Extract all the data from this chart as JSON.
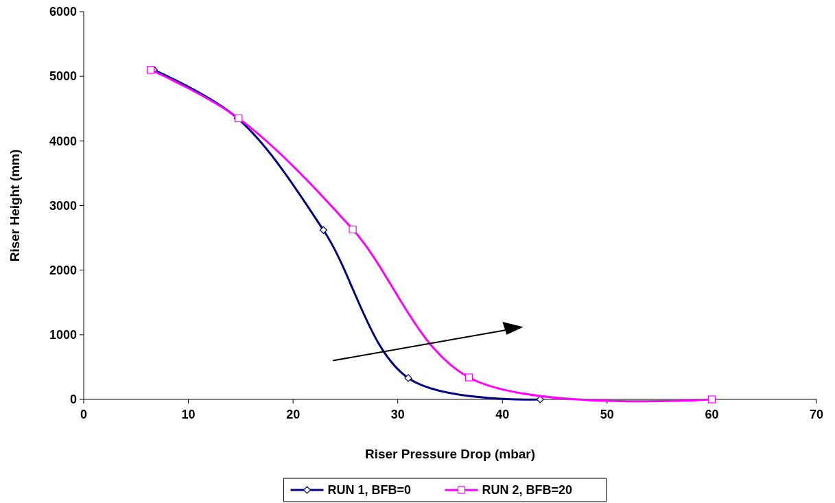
{
  "chart_data": {
    "type": "line",
    "xlabel": "Riser Pressure Drop (mbar)",
    "ylabel": "Riser Height (mm)",
    "xlim": [
      0,
      70
    ],
    "xticks": [
      0,
      10,
      20,
      30,
      40,
      50,
      60,
      70
    ],
    "ylim": [
      0,
      6000
    ],
    "yticks": [
      0,
      1000,
      2000,
      3000,
      4000,
      5000,
      6000
    ],
    "grid": false,
    "legend": "bottom",
    "line_style": "solid",
    "series": [
      {
        "name": "RUN 1, BFB=0",
        "color": "#000080",
        "marker": "diamond",
        "x": [
          6.7,
          14.7,
          22.9,
          31.0,
          43.6
        ],
        "values": [
          5100,
          4350,
          2620,
          330,
          0
        ]
      },
      {
        "name": "RUN 2, BFB=20",
        "color": "#ff00ff",
        "marker": "square",
        "x": [
          6.4,
          14.8,
          25.7,
          36.8,
          60.0
        ],
        "values": [
          5100,
          4350,
          2630,
          340,
          0
        ]
      }
    ]
  }
}
